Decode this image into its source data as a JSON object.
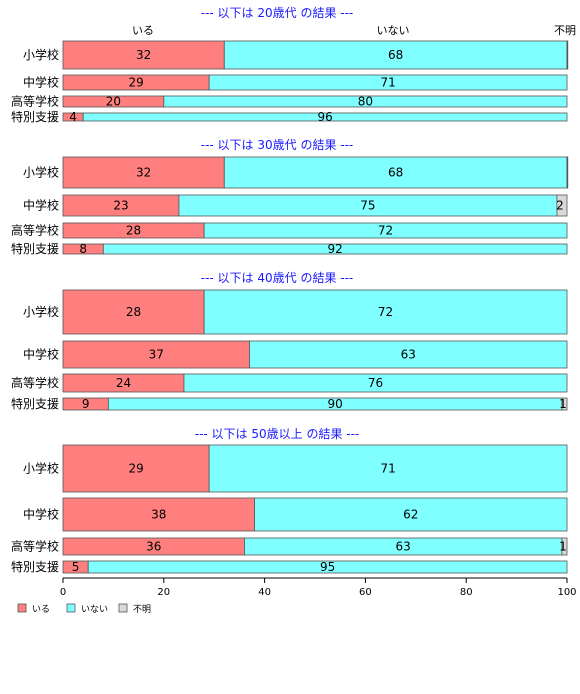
{
  "chart_data": {
    "type": "bar",
    "stacked": true,
    "orientation": "horizontal",
    "xlim": [
      0,
      100
    ],
    "xticks": [
      "0",
      "20",
      "40",
      "60",
      "80",
      "100"
    ],
    "column_headers": [
      "いる",
      "いない",
      "不明"
    ],
    "legend": {
      "placement": "bottom-left",
      "entries": [
        {
          "name": "いる",
          "color": "#ff7f7f"
        },
        {
          "name": "いない",
          "color": "#7fffff"
        },
        {
          "name": "不明",
          "color": "#d9d9d9"
        }
      ]
    },
    "panels": [
      {
        "title": "--- 以下は 20歳代 の結果 ---",
        "categories": [
          "小学校",
          "中学校",
          "高等学校",
          "特別支援"
        ],
        "series": [
          {
            "name": "いる",
            "values": [
              32,
              29,
              20,
              4
            ]
          },
          {
            "name": "いない",
            "values": [
              68,
              71,
              80,
              96
            ]
          },
          {
            "name": "不明",
            "values": [
              0.4,
              0,
              0,
              0
            ]
          }
        ],
        "labels": [
          [
            "32",
            "68",
            ""
          ],
          [
            "29",
            "71",
            ""
          ],
          [
            "20",
            "80",
            ""
          ],
          [
            "4",
            "96",
            ""
          ]
        ]
      },
      {
        "title": "--- 以下は 30歳代 の結果 ---",
        "categories": [
          "小学校",
          "中学校",
          "高等学校",
          "特別支援"
        ],
        "series": [
          {
            "name": "いる",
            "values": [
              32,
              23,
              28,
              8
            ]
          },
          {
            "name": "いない",
            "values": [
              68,
              75,
              72,
              92
            ]
          },
          {
            "name": "不明",
            "values": [
              0.4,
              2,
              0,
              0
            ]
          }
        ],
        "labels": [
          [
            "32",
            "68",
            ""
          ],
          [
            "23",
            "75",
            "2"
          ],
          [
            "28",
            "72",
            ""
          ],
          [
            "8",
            "92",
            ""
          ]
        ]
      },
      {
        "title": "--- 以下は 40歳代 の結果 ---",
        "categories": [
          "小学校",
          "中学校",
          "高等学校",
          "特別支援"
        ],
        "series": [
          {
            "name": "いる",
            "values": [
              28,
              37,
              24,
              9
            ]
          },
          {
            "name": "いない",
            "values": [
              72,
              63,
              76,
              90
            ]
          },
          {
            "name": "不明",
            "values": [
              0,
              0,
              0,
              1
            ]
          }
        ],
        "labels": [
          [
            "28",
            "72",
            ""
          ],
          [
            "37",
            "63",
            ""
          ],
          [
            "24",
            "76",
            ""
          ],
          [
            "9",
            "90",
            "1"
          ]
        ]
      },
      {
        "title": "--- 以下は 50歳以上 の結果 ---",
        "categories": [
          "小学校",
          "中学校",
          "高等学校",
          "特別支援"
        ],
        "series": [
          {
            "name": "いる",
            "values": [
              29,
              38,
              36,
              5
            ]
          },
          {
            "name": "いない",
            "values": [
              71,
              62,
              63,
              95
            ]
          },
          {
            "name": "不明",
            "values": [
              0,
              0,
              1,
              0
            ]
          }
        ],
        "labels": [
          [
            "29",
            "71",
            ""
          ],
          [
            "38",
            "62",
            ""
          ],
          [
            "36",
            "63",
            "1"
          ],
          [
            "5",
            "95",
            ""
          ]
        ]
      }
    ]
  }
}
